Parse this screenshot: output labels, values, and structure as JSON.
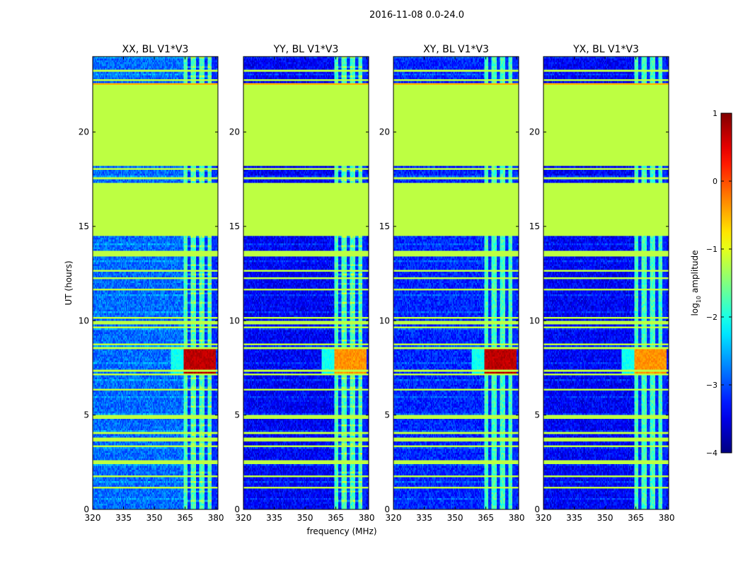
{
  "figure": {
    "suptitle": "2016-11-08 0.0-24.0"
  },
  "chart_data": {
    "type": "heatmap",
    "shared": {
      "xlabel": "frequency (MHz)",
      "ylabel": "UT (hours)",
      "xlim": [
        320,
        381
      ],
      "ylim": [
        0,
        24
      ],
      "xticks": [
        320,
        335,
        350,
        365,
        380
      ],
      "yticks": [
        0,
        5,
        10,
        15,
        20
      ],
      "xtick_labels": [
        "320",
        "335",
        "350",
        "365",
        "380"
      ],
      "ytick_labels": [
        "0",
        "5",
        "10",
        "15",
        "20"
      ]
    },
    "panels": [
      {
        "title": "XX, BL V1*V3",
        "pol": "XX"
      },
      {
        "title": "YY, BL V1*V3",
        "pol": "YY"
      },
      {
        "title": "XY, BL V1*V3",
        "pol": "XY"
      },
      {
        "title": "YX, BL V1*V3",
        "pol": "YX"
      }
    ],
    "colorbar": {
      "label_prefix": "log",
      "label_sub": "10",
      "label_suffix": " amplitude",
      "range": [
        -4,
        1
      ],
      "ticks": [
        1,
        0,
        -1,
        -2,
        -3,
        -4
      ],
      "tick_labels": [
        "1",
        "0",
        "−1",
        "−2",
        "−3",
        "−4"
      ],
      "colormap": "jet"
    },
    "data_summary": {
      "flagged_blocks_UT": [
        [
          14.5,
          17.3
        ],
        [
          18.2,
          22.6
        ]
      ],
      "active_band_MHz": [
        364,
        380
      ],
      "narrowband_columns_MHz": [
        367,
        371,
        375,
        379
      ],
      "background_log10_amp": -3.2,
      "band_log10_amp": -1.8,
      "flag_value_log10_amp": -1.2,
      "strong_event_UT": [
        7.2,
        8.5
      ]
    }
  }
}
